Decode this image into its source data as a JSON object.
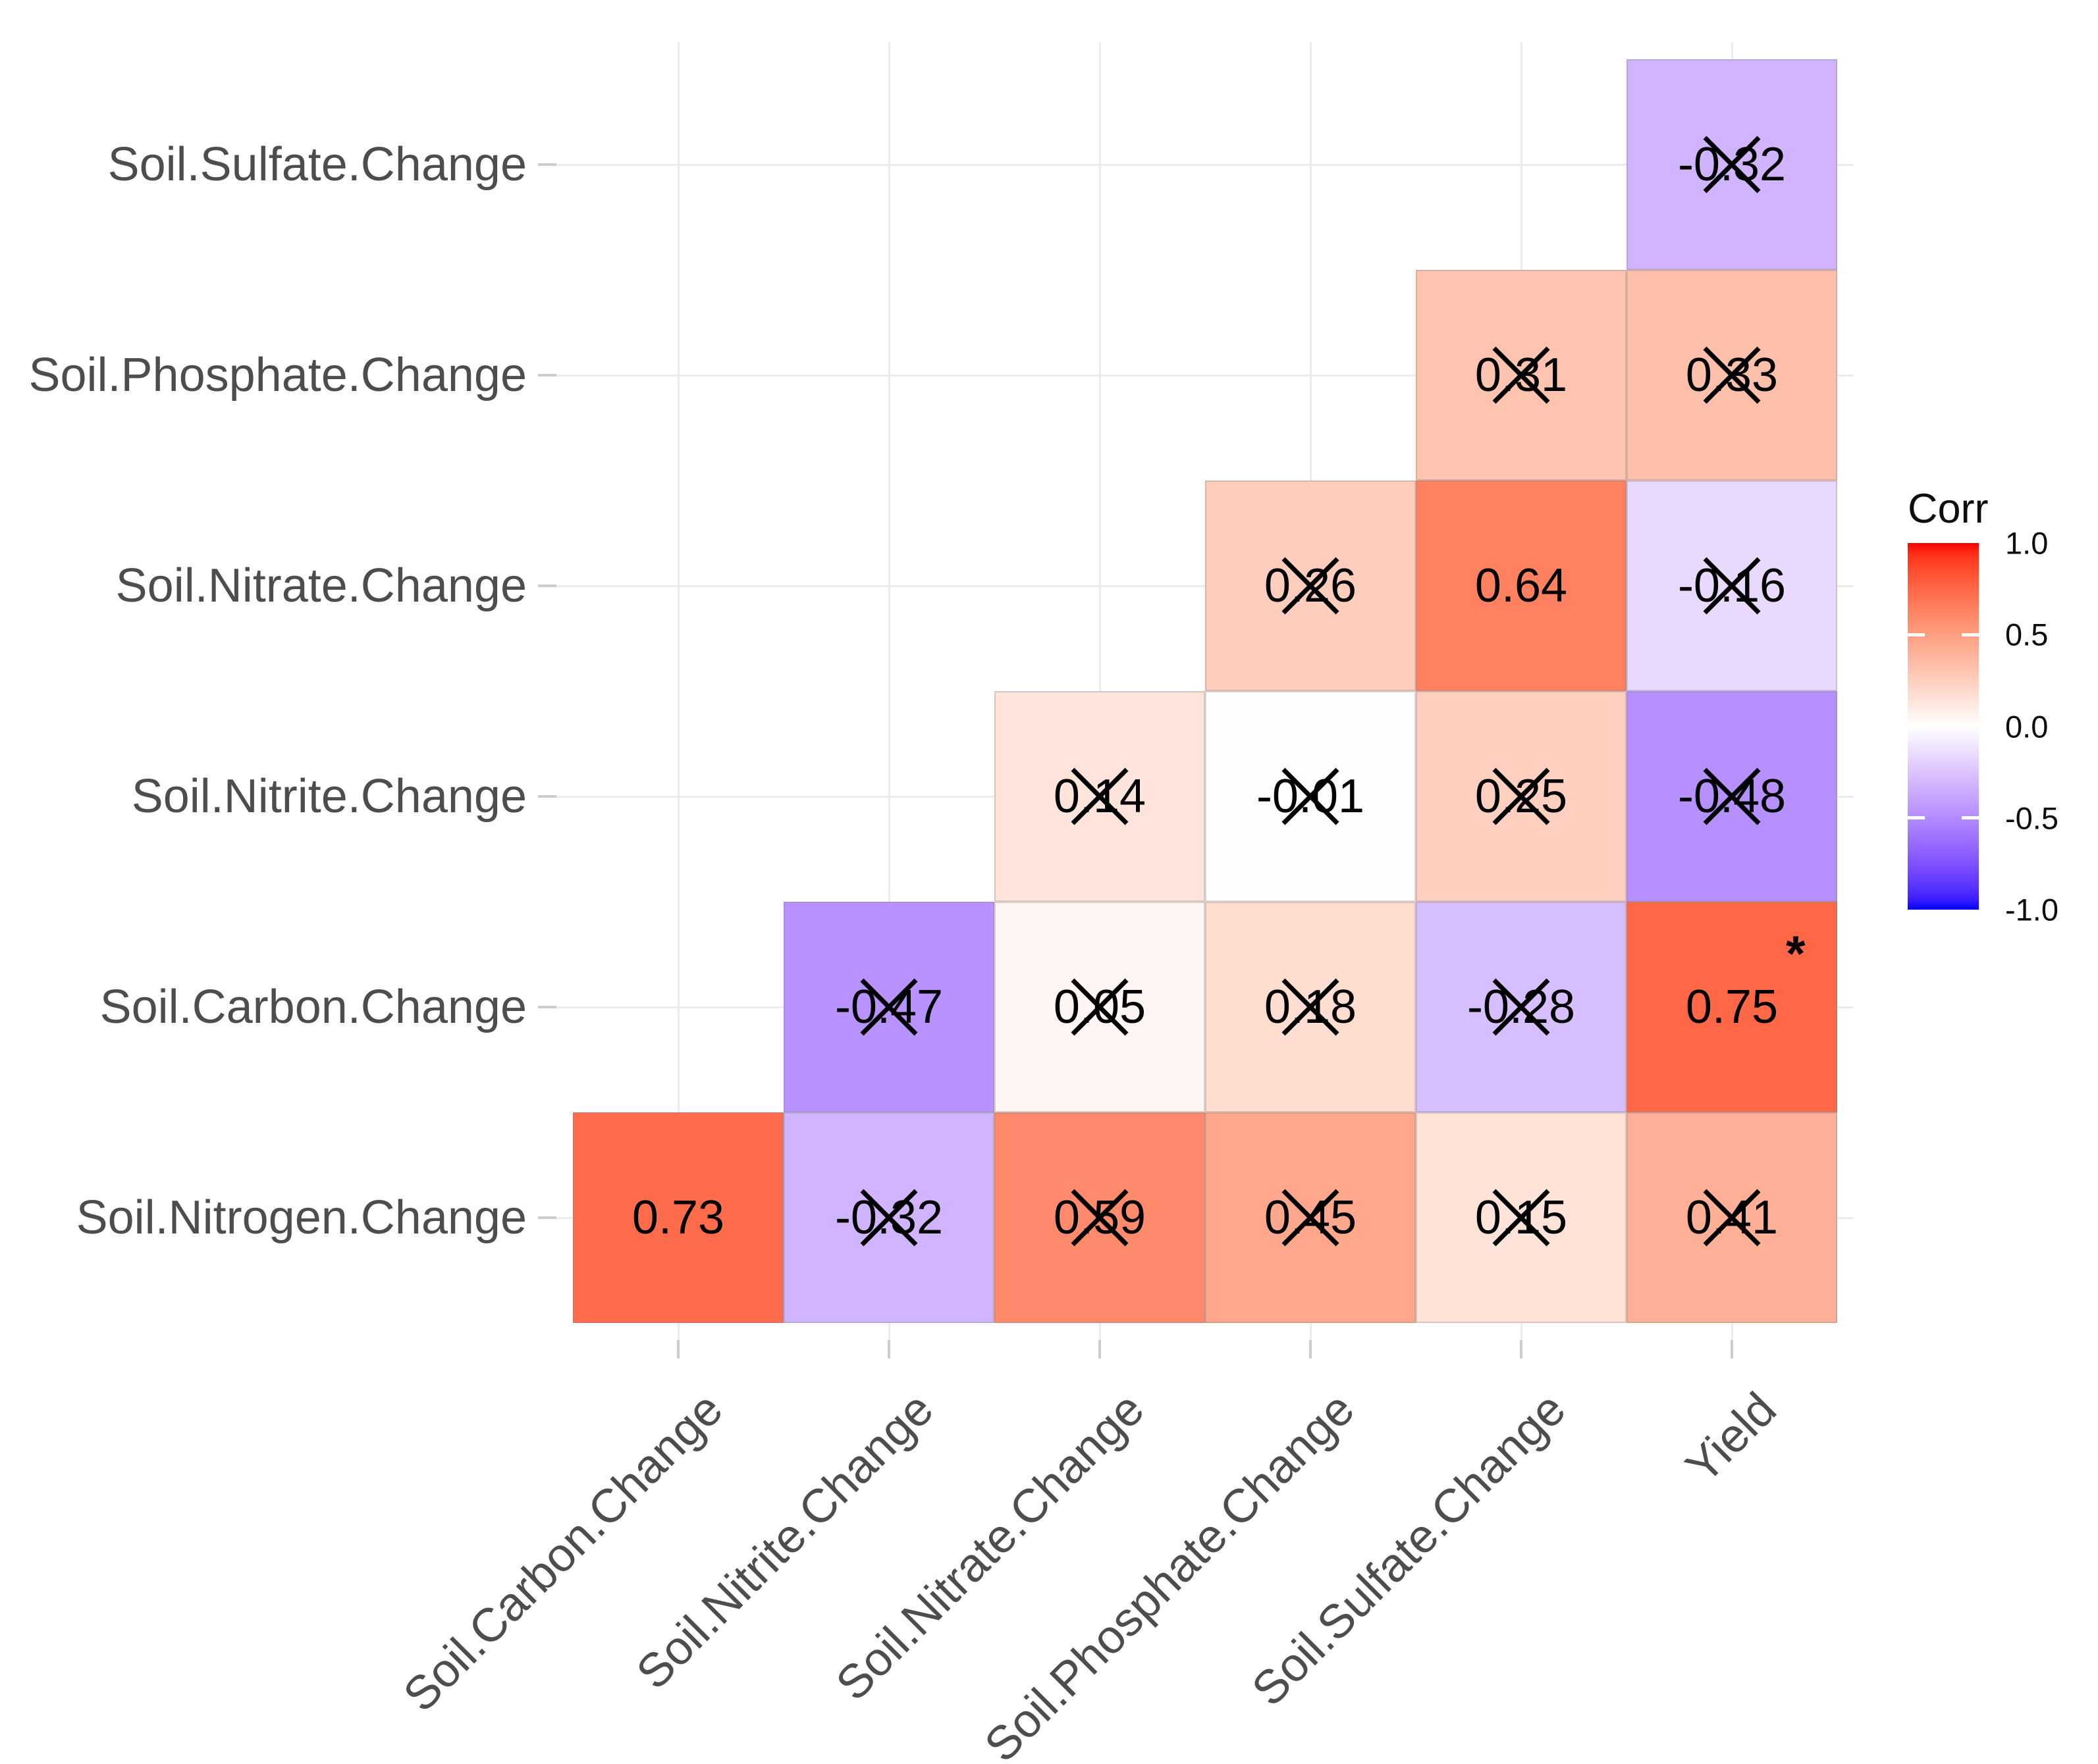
{
  "chart_data": {
    "type": "heatmap",
    "title": "",
    "x_categories": [
      "Soil.Carbon.Change",
      "Soil.Nitrite.Change",
      "Soil.Nitrate.Change",
      "Soil.Phosphate.Change",
      "Soil.Sulfate.Change",
      "Yield"
    ],
    "y_categories_top_to_bottom": [
      "Soil.Sulfate.Change",
      "Soil.Phosphate.Change",
      "Soil.Nitrate.Change",
      "Soil.Nitrite.Change",
      "Soil.Carbon.Change",
      "Soil.Nitrogen.Change"
    ],
    "value_range": [
      -1,
      1
    ],
    "grid": true,
    "layout": "lower-triangle",
    "significance_marker": "*",
    "legend": {
      "title": "Corr",
      "position": "right",
      "tick_labels": [
        "1.0",
        "0.5",
        "0.0",
        "-0.5",
        "-1.0"
      ],
      "tick_values": [
        1.0,
        0.5,
        0.0,
        -0.5,
        -1.0
      ],
      "high_color": "#FF0000",
      "mid_color": "#FFFFFF",
      "low_color": "#0000FF"
    },
    "cells": [
      {
        "row": 0,
        "col": 5,
        "value": -0.32,
        "label": "-0.32",
        "crossed": true,
        "star": false
      },
      {
        "row": 1,
        "col": 4,
        "value": 0.31,
        "label": "0.31",
        "crossed": true,
        "star": false
      },
      {
        "row": 1,
        "col": 5,
        "value": 0.33,
        "label": "0.33",
        "crossed": true,
        "star": false
      },
      {
        "row": 2,
        "col": 3,
        "value": 0.26,
        "label": "0.26",
        "crossed": true,
        "star": false
      },
      {
        "row": 2,
        "col": 4,
        "value": 0.64,
        "label": "0.64",
        "crossed": false,
        "star": false
      },
      {
        "row": 2,
        "col": 5,
        "value": -0.16,
        "label": "-0.16",
        "crossed": true,
        "star": false
      },
      {
        "row": 3,
        "col": 2,
        "value": 0.14,
        "label": "0.14",
        "crossed": true,
        "star": false
      },
      {
        "row": 3,
        "col": 3,
        "value": -0.01,
        "label": "-0.01",
        "crossed": true,
        "star": false
      },
      {
        "row": 3,
        "col": 4,
        "value": 0.25,
        "label": "0.25",
        "crossed": true,
        "star": false
      },
      {
        "row": 3,
        "col": 5,
        "value": -0.48,
        "label": "-0.48",
        "crossed": true,
        "star": false
      },
      {
        "row": 4,
        "col": 1,
        "value": -0.47,
        "label": "-0.47",
        "crossed": true,
        "star": false
      },
      {
        "row": 4,
        "col": 2,
        "value": 0.05,
        "label": "0.05",
        "crossed": true,
        "star": false
      },
      {
        "row": 4,
        "col": 3,
        "value": 0.18,
        "label": "0.18",
        "crossed": true,
        "star": false
      },
      {
        "row": 4,
        "col": 4,
        "value": -0.28,
        "label": "-0.28",
        "crossed": true,
        "star": false
      },
      {
        "row": 4,
        "col": 5,
        "value": 0.75,
        "label": "0.75",
        "crossed": false,
        "star": true
      },
      {
        "row": 5,
        "col": 0,
        "value": 0.73,
        "label": "0.73",
        "crossed": false,
        "star": false
      },
      {
        "row": 5,
        "col": 1,
        "value": -0.32,
        "label": "-0.32",
        "crossed": true,
        "star": false
      },
      {
        "row": 5,
        "col": 2,
        "value": 0.59,
        "label": "0.59",
        "crossed": true,
        "star": false
      },
      {
        "row": 5,
        "col": 3,
        "value": 0.45,
        "label": "0.45",
        "crossed": true,
        "star": false
      },
      {
        "row": 5,
        "col": 4,
        "value": 0.15,
        "label": "0.15",
        "crossed": true,
        "star": false
      },
      {
        "row": 5,
        "col": 5,
        "value": 0.41,
        "label": "0.41",
        "crossed": true,
        "star": false
      }
    ]
  }
}
